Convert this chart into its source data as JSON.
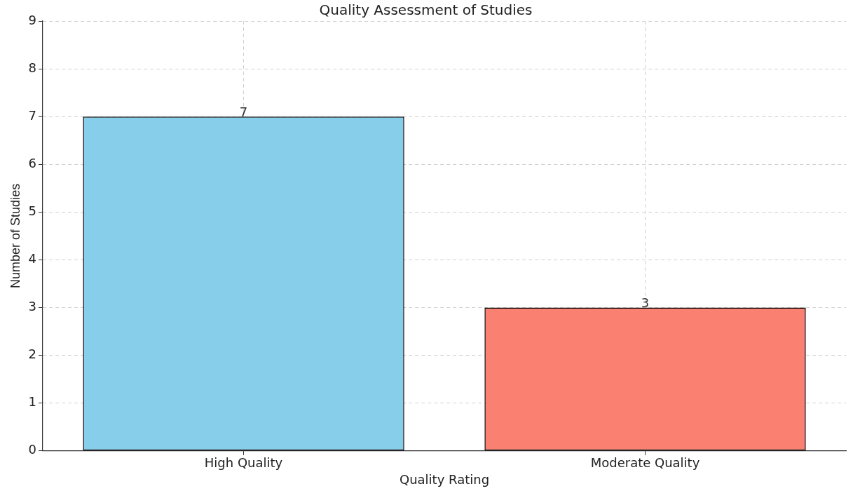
{
  "chart_data": {
    "type": "bar",
    "title": "Quality Assessment of Studies",
    "xlabel": "Quality Rating",
    "ylabel": "Number of Studies",
    "categories": [
      "High Quality",
      "Moderate Quality"
    ],
    "values": [
      7,
      3
    ],
    "colors": [
      "#87ceeb",
      "#fa8072"
    ],
    "ylim": [
      0,
      9
    ],
    "yticks": [
      0,
      1,
      2,
      3,
      4,
      5,
      6,
      7,
      8,
      9
    ],
    "grid": true,
    "data_labels": true
  }
}
